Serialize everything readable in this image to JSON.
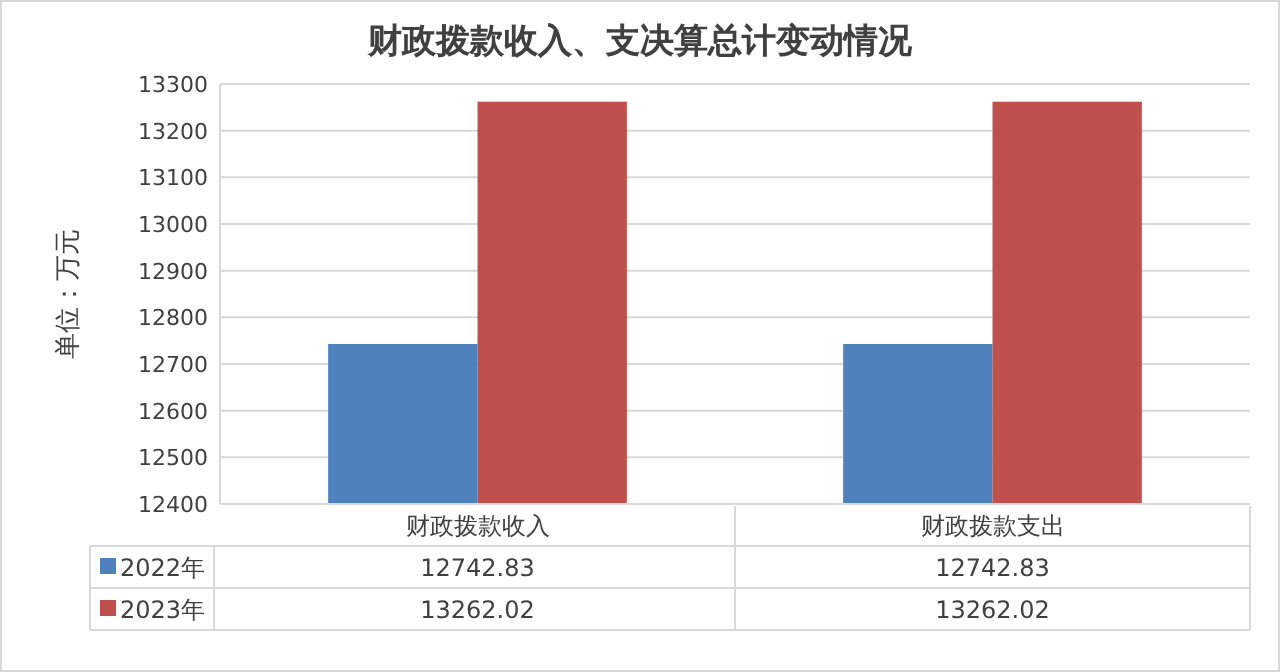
{
  "chart_data": {
    "type": "bar",
    "title": "财政拨款收入、支决算总计变动情况",
    "ylabel": "单位：万元",
    "categories": [
      "财政拨款收入",
      "财政拨款支出"
    ],
    "series": [
      {
        "name": "2022年",
        "color": "#4f81bd",
        "values": [
          12742.83,
          12742.83
        ]
      },
      {
        "name": "2023年",
        "color": "#c0504d",
        "values": [
          13262.02,
          13262.02
        ]
      }
    ],
    "ylim": [
      12400,
      13300
    ],
    "yticks": [
      12400,
      12500,
      12600,
      12700,
      12800,
      12900,
      13000,
      13100,
      13200,
      13300
    ],
    "grid": "y",
    "legend": "bottom",
    "data_labels": true
  }
}
